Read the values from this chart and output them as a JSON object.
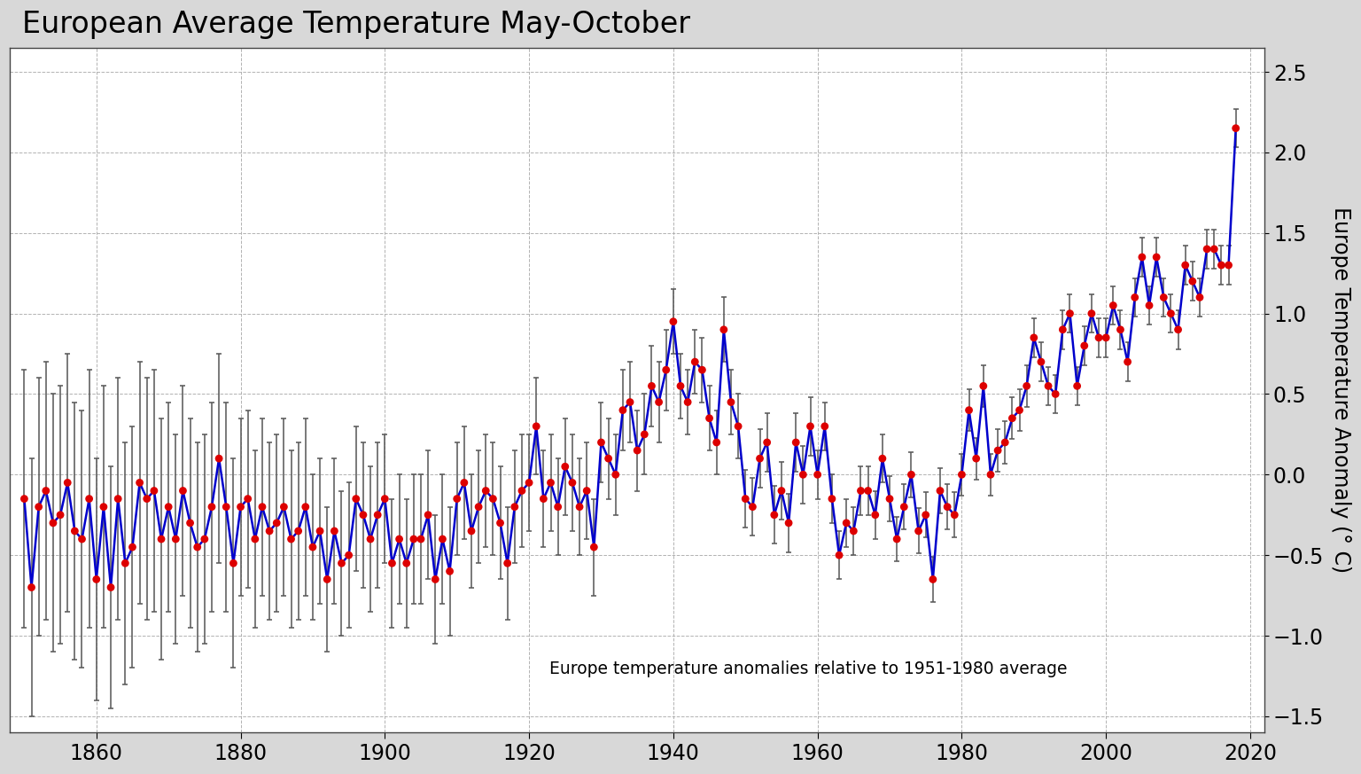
{
  "title": "European Average Temperature May-October",
  "ylabel": "Europe Temperature Anomaly (° C)",
  "annotation": "Europe temperature anomalies relative to 1951-1980 average",
  "background_color": "#d8d8d8",
  "plot_bg_color": "#ffffff",
  "line_color": "#0000cc",
  "dot_color": "#dd0000",
  "errorbar_color": "#555555",
  "title_fontsize": 24,
  "label_fontsize": 17,
  "tick_fontsize": 17,
  "ylim": [
    -1.6,
    2.65
  ],
  "yticks": [
    -1.5,
    -1.0,
    -0.5,
    0.0,
    0.5,
    1.0,
    1.5,
    2.0,
    2.5
  ],
  "years": [
    1850,
    1851,
    1852,
    1853,
    1854,
    1855,
    1856,
    1857,
    1858,
    1859,
    1860,
    1861,
    1862,
    1863,
    1864,
    1865,
    1866,
    1867,
    1868,
    1869,
    1870,
    1871,
    1872,
    1873,
    1874,
    1875,
    1876,
    1877,
    1878,
    1879,
    1880,
    1881,
    1882,
    1883,
    1884,
    1885,
    1886,
    1887,
    1888,
    1889,
    1890,
    1891,
    1892,
    1893,
    1894,
    1895,
    1896,
    1897,
    1898,
    1899,
    1900,
    1901,
    1902,
    1903,
    1904,
    1905,
    1906,
    1907,
    1908,
    1909,
    1910,
    1911,
    1912,
    1913,
    1914,
    1915,
    1916,
    1917,
    1918,
    1919,
    1920,
    1921,
    1922,
    1923,
    1924,
    1925,
    1926,
    1927,
    1928,
    1929,
    1930,
    1931,
    1932,
    1933,
    1934,
    1935,
    1936,
    1937,
    1938,
    1939,
    1940,
    1941,
    1942,
    1943,
    1944,
    1945,
    1946,
    1947,
    1948,
    1949,
    1950,
    1951,
    1952,
    1953,
    1954,
    1955,
    1956,
    1957,
    1958,
    1959,
    1960,
    1961,
    1962,
    1963,
    1964,
    1965,
    1966,
    1967,
    1968,
    1969,
    1970,
    1971,
    1972,
    1973,
    1974,
    1975,
    1976,
    1977,
    1978,
    1979,
    1980,
    1981,
    1982,
    1983,
    1984,
    1985,
    1986,
    1987,
    1988,
    1989,
    1990,
    1991,
    1992,
    1993,
    1994,
    1995,
    1996,
    1997,
    1998,
    1999,
    2000,
    2001,
    2002,
    2003,
    2004,
    2005,
    2006,
    2007,
    2008,
    2009,
    2010,
    2011,
    2012,
    2013,
    2014,
    2015,
    2016,
    2017,
    2018
  ],
  "anomalies": [
    -0.15,
    -0.7,
    -0.2,
    -0.1,
    -0.3,
    -0.25,
    -0.05,
    -0.35,
    -0.4,
    -0.15,
    -0.65,
    -0.2,
    -0.7,
    -0.15,
    -0.55,
    -0.45,
    -0.05,
    -0.15,
    -0.1,
    -0.4,
    -0.2,
    -0.4,
    -0.1,
    -0.3,
    -0.45,
    -0.4,
    -0.2,
    0.1,
    -0.2,
    -0.55,
    -0.2,
    -0.15,
    -0.4,
    -0.2,
    -0.35,
    -0.3,
    -0.2,
    -0.4,
    -0.35,
    -0.2,
    -0.45,
    -0.35,
    -0.65,
    -0.35,
    -0.55,
    -0.5,
    -0.15,
    -0.25,
    -0.4,
    -0.25,
    -0.15,
    -0.55,
    -0.4,
    -0.55,
    -0.4,
    -0.4,
    -0.25,
    -0.65,
    -0.4,
    -0.6,
    -0.15,
    -0.05,
    -0.35,
    -0.2,
    -0.1,
    -0.15,
    -0.3,
    -0.55,
    -0.2,
    -0.1,
    -0.05,
    0.3,
    -0.15,
    -0.05,
    -0.2,
    0.05,
    -0.05,
    -0.2,
    -0.1,
    -0.45,
    0.2,
    0.1,
    -0.0,
    0.4,
    0.45,
    0.15,
    0.25,
    0.55,
    0.45,
    0.65,
    0.95,
    0.55,
    0.45,
    0.7,
    0.65,
    0.35,
    0.2,
    0.9,
    0.45,
    0.3,
    -0.15,
    -0.2,
    0.1,
    0.2,
    -0.25,
    -0.1,
    -0.3,
    0.2,
    0.0,
    0.3,
    0.0,
    0.3,
    -0.15,
    -0.5,
    -0.3,
    -0.35,
    -0.1,
    -0.1,
    -0.25,
    0.1,
    -0.15,
    -0.4,
    -0.2,
    0.0,
    -0.35,
    -0.25,
    -0.65,
    -0.1,
    -0.2,
    -0.25,
    0.0,
    0.4,
    0.1,
    0.55,
    0.0,
    0.15,
    0.2,
    0.35,
    0.4,
    0.55,
    0.85,
    0.7,
    0.55,
    0.5,
    0.9,
    1.0,
    0.55,
    0.8,
    1.0,
    0.85,
    0.85,
    1.05,
    0.9,
    0.7,
    1.1,
    1.35,
    1.05,
    1.35,
    1.1,
    1.0,
    0.9,
    1.3,
    1.2,
    1.1,
    1.4,
    1.4,
    1.3,
    1.3,
    2.15
  ],
  "errors": [
    0.8,
    0.8,
    0.8,
    0.8,
    0.8,
    0.8,
    0.8,
    0.8,
    0.8,
    0.8,
    0.75,
    0.75,
    0.75,
    0.75,
    0.75,
    0.75,
    0.75,
    0.75,
    0.75,
    0.75,
    0.65,
    0.65,
    0.65,
    0.65,
    0.65,
    0.65,
    0.65,
    0.65,
    0.65,
    0.65,
    0.55,
    0.55,
    0.55,
    0.55,
    0.55,
    0.55,
    0.55,
    0.55,
    0.55,
    0.55,
    0.45,
    0.45,
    0.45,
    0.45,
    0.45,
    0.45,
    0.45,
    0.45,
    0.45,
    0.45,
    0.4,
    0.4,
    0.4,
    0.4,
    0.4,
    0.4,
    0.4,
    0.4,
    0.4,
    0.4,
    0.35,
    0.35,
    0.35,
    0.35,
    0.35,
    0.35,
    0.35,
    0.35,
    0.35,
    0.35,
    0.3,
    0.3,
    0.3,
    0.3,
    0.3,
    0.3,
    0.3,
    0.3,
    0.3,
    0.3,
    0.25,
    0.25,
    0.25,
    0.25,
    0.25,
    0.25,
    0.25,
    0.25,
    0.25,
    0.25,
    0.2,
    0.2,
    0.2,
    0.2,
    0.2,
    0.2,
    0.2,
    0.2,
    0.2,
    0.2,
    0.18,
    0.18,
    0.18,
    0.18,
    0.18,
    0.18,
    0.18,
    0.18,
    0.18,
    0.18,
    0.15,
    0.15,
    0.15,
    0.15,
    0.15,
    0.15,
    0.15,
    0.15,
    0.15,
    0.15,
    0.14,
    0.14,
    0.14,
    0.14,
    0.14,
    0.14,
    0.14,
    0.14,
    0.14,
    0.14,
    0.13,
    0.13,
    0.13,
    0.13,
    0.13,
    0.13,
    0.13,
    0.13,
    0.13,
    0.13,
    0.12,
    0.12,
    0.12,
    0.12,
    0.12,
    0.12,
    0.12,
    0.12,
    0.12,
    0.12,
    0.12,
    0.12,
    0.12,
    0.12,
    0.12,
    0.12,
    0.12,
    0.12,
    0.12,
    0.12,
    0.12,
    0.12,
    0.12,
    0.12,
    0.12,
    0.12,
    0.12,
    0.12,
    0.12
  ]
}
